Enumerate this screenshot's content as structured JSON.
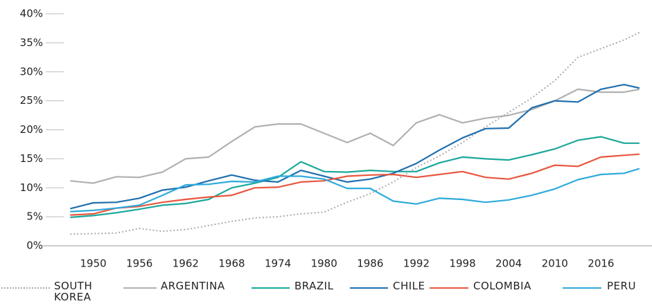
{
  "chart_data": {
    "type": "line",
    "x": [
      1947,
      1950,
      1953,
      1956,
      1959,
      1962,
      1965,
      1968,
      1971,
      1974,
      1977,
      1980,
      1983,
      1986,
      1989,
      1992,
      1995,
      1998,
      2001,
      2004,
      2007,
      2010,
      2013,
      2016,
      2019,
      2021
    ],
    "series": [
      {
        "name": "SOUTH KOREA",
        "color": "#aaaaaa",
        "dash": true,
        "values": [
          2.0,
          2.1,
          2.2,
          3.0,
          2.5,
          2.8,
          3.5,
          4.2,
          4.8,
          5.0,
          5.5,
          5.8,
          7.5,
          9.0,
          11.0,
          13.5,
          15.5,
          17.8,
          20.5,
          23.0,
          25.5,
          28.5,
          32.5,
          34.0,
          35.5,
          36.8
        ]
      },
      {
        "name": "ARGENTINA",
        "color": "#b0b0b0",
        "values": [
          11.2,
          10.8,
          11.9,
          11.8,
          12.7,
          15.0,
          15.3,
          18.0,
          20.5,
          21.0,
          21.0,
          19.4,
          17.8,
          19.4,
          17.3,
          21.2,
          22.6,
          21.2,
          22.0,
          22.5,
          23.5,
          25.0,
          27.0,
          26.5,
          26.5,
          27.0
        ]
      },
      {
        "name": "BRAZIL",
        "color": "#1aa79a",
        "values": [
          4.9,
          5.2,
          5.7,
          6.3,
          7.0,
          7.3,
          8.0,
          10.0,
          10.8,
          11.8,
          14.5,
          12.8,
          12.7,
          13.0,
          12.8,
          12.8,
          14.3,
          15.3,
          15.0,
          14.8,
          15.7,
          16.7,
          18.2,
          18.8,
          17.7,
          17.7
        ]
      },
      {
        "name": "CHILE",
        "color": "#1f6faf",
        "values": [
          6.4,
          7.4,
          7.5,
          8.2,
          9.6,
          10.1,
          11.2,
          12.2,
          11.3,
          11.0,
          13.0,
          12.0,
          11.0,
          11.5,
          12.5,
          14.2,
          16.5,
          18.6,
          20.2,
          20.3,
          23.8,
          25.0,
          24.8,
          27.0,
          27.8,
          27.2
        ]
      },
      {
        "name": "COLOMBIA",
        "color": "#e8563f",
        "values": [
          5.3,
          5.5,
          6.5,
          6.8,
          7.5,
          8.0,
          8.4,
          8.7,
          10.0,
          10.1,
          11.0,
          11.2,
          12.0,
          12.2,
          12.3,
          11.8,
          12.3,
          12.8,
          11.8,
          11.5,
          12.5,
          13.9,
          13.7,
          15.3,
          15.6,
          15.8
        ]
      },
      {
        "name": "PERU",
        "color": "#2eaadc",
        "values": [
          5.9,
          6.1,
          6.5,
          7.0,
          8.7,
          10.5,
          10.6,
          11.1,
          11.0,
          12.0,
          12.0,
          11.5,
          9.9,
          9.9,
          7.7,
          7.2,
          8.2,
          8.0,
          7.5,
          7.9,
          8.7,
          9.8,
          11.4,
          12.3,
          12.5,
          13.3
        ]
      }
    ],
    "xlim": [
      1944,
      2022
    ],
    "xticks": [
      1950,
      1956,
      1962,
      1968,
      1974,
      1980,
      1986,
      1992,
      1998,
      2004,
      2010,
      2016
    ],
    "ylim": [
      0,
      40
    ],
    "yticks": [
      {
        "value": 0,
        "label": "0%"
      },
      {
        "value": 5,
        "label": "5%"
      },
      {
        "value": 10,
        "label": "10%"
      },
      {
        "value": 15,
        "label": "15%"
      },
      {
        "value": 20,
        "label": "20%"
      },
      {
        "value": 25,
        "label": "25%"
      },
      {
        "value": 30,
        "label": "30%"
      },
      {
        "value": 35,
        "label": "35%"
      },
      {
        "value": 40,
        "label": "40%"
      }
    ],
    "legend": "bottom"
  }
}
